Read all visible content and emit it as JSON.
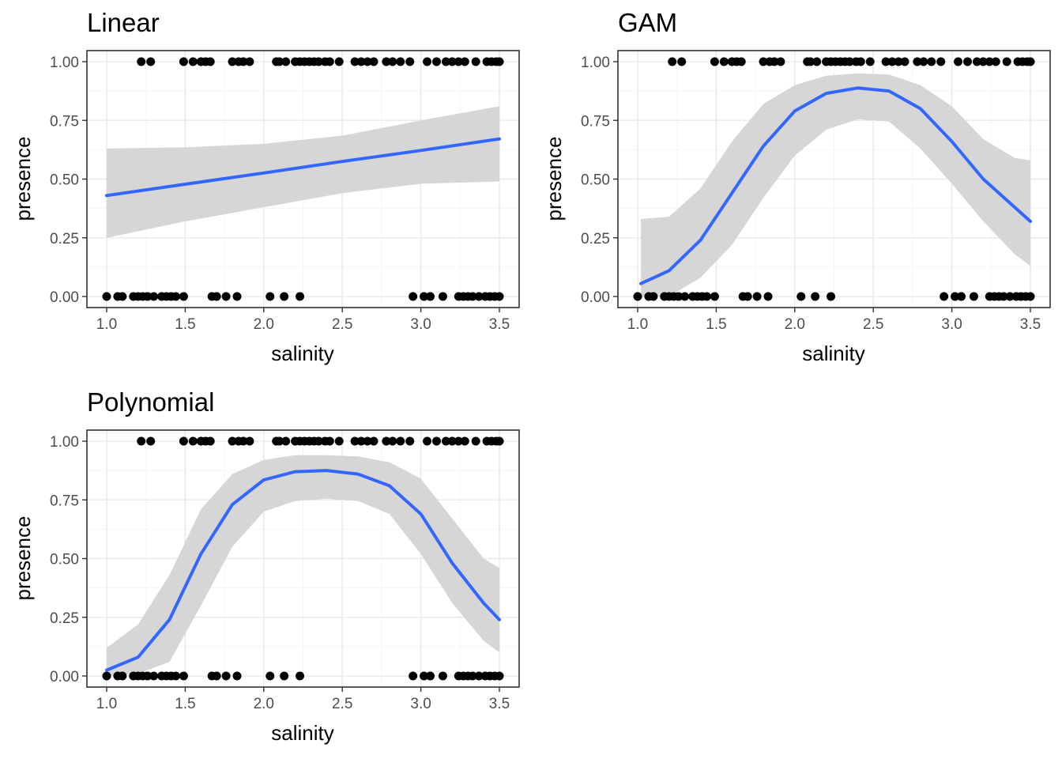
{
  "chart_data": [
    {
      "type": "scatter",
      "title": "Linear",
      "xlabel": "salinity",
      "ylabel": "presence",
      "xlim": [
        0.95,
        3.55
      ],
      "ylim": [
        -0.05,
        1.05
      ],
      "xticks": [
        "1.0",
        "1.5",
        "2.0",
        "2.5",
        "3.0",
        "3.5"
      ],
      "yticks": [
        "0.00",
        "0.25",
        "0.50",
        "0.75",
        "1.00"
      ],
      "grid": true,
      "points_y1": [
        1.22,
        1.28,
        1.49,
        1.55,
        1.6,
        1.63,
        1.66,
        1.8,
        1.84,
        1.87,
        1.91,
        2.08,
        2.1,
        2.14,
        2.2,
        2.23,
        2.26,
        2.29,
        2.32,
        2.35,
        2.39,
        2.42,
        2.48,
        2.58,
        2.62,
        2.66,
        2.7,
        2.78,
        2.82,
        2.87,
        2.93,
        3.04,
        3.1,
        3.16,
        3.2,
        3.24,
        3.28,
        3.35,
        3.42,
        3.45,
        3.48,
        3.5
      ],
      "points_y0": [
        1.0,
        1.07,
        1.1,
        1.17,
        1.2,
        1.23,
        1.26,
        1.3,
        1.35,
        1.38,
        1.41,
        1.44,
        1.49,
        1.67,
        1.7,
        1.76,
        1.83,
        2.04,
        2.13,
        2.23,
        2.95,
        3.02,
        3.06,
        3.14,
        3.24,
        3.27,
        3.3,
        3.33,
        3.37,
        3.41,
        3.44,
        3.47,
        3.5
      ],
      "fit": {
        "x": [
          1.0,
          1.5,
          2.0,
          2.5,
          3.0,
          3.5
        ],
        "y": [
          0.43,
          0.478,
          0.526,
          0.575,
          0.622,
          0.671
        ],
        "lower": [
          0.25,
          0.32,
          0.38,
          0.44,
          0.48,
          0.49
        ],
        "upper": [
          0.63,
          0.635,
          0.65,
          0.685,
          0.75,
          0.81
        ]
      }
    },
    {
      "type": "scatter",
      "title": "GAM",
      "xlabel": "salinity",
      "ylabel": "presence",
      "xlim": [
        0.95,
        3.55
      ],
      "ylim": [
        -0.05,
        1.05
      ],
      "xticks": [
        "1.0",
        "1.5",
        "2.0",
        "2.5",
        "3.0",
        "3.5"
      ],
      "yticks": [
        "0.00",
        "0.25",
        "0.50",
        "0.75",
        "1.00"
      ],
      "grid": true,
      "points_y1": [
        1.22,
        1.28,
        1.49,
        1.55,
        1.6,
        1.63,
        1.66,
        1.8,
        1.84,
        1.87,
        1.91,
        2.08,
        2.1,
        2.14,
        2.2,
        2.23,
        2.26,
        2.29,
        2.32,
        2.35,
        2.39,
        2.42,
        2.48,
        2.58,
        2.62,
        2.66,
        2.7,
        2.78,
        2.82,
        2.87,
        2.93,
        3.04,
        3.1,
        3.16,
        3.2,
        3.24,
        3.28,
        3.35,
        3.42,
        3.45,
        3.48,
        3.5
      ],
      "points_y0": [
        1.0,
        1.07,
        1.1,
        1.17,
        1.2,
        1.23,
        1.26,
        1.3,
        1.35,
        1.38,
        1.41,
        1.44,
        1.49,
        1.67,
        1.7,
        1.76,
        1.83,
        2.04,
        2.13,
        2.23,
        2.95,
        3.02,
        3.06,
        3.14,
        3.24,
        3.27,
        3.3,
        3.33,
        3.37,
        3.41,
        3.44,
        3.47,
        3.5
      ],
      "fit": {
        "x": [
          1.02,
          1.2,
          1.4,
          1.6,
          1.8,
          2.0,
          2.2,
          2.4,
          2.6,
          2.8,
          3.0,
          3.2,
          3.4,
          3.5
        ],
        "y": [
          0.055,
          0.11,
          0.24,
          0.44,
          0.64,
          0.79,
          0.865,
          0.888,
          0.875,
          0.8,
          0.66,
          0.5,
          0.38,
          0.32
        ],
        "lower": [
          0.0,
          0.0,
          0.08,
          0.22,
          0.42,
          0.6,
          0.71,
          0.755,
          0.745,
          0.63,
          0.48,
          0.32,
          0.18,
          0.13
        ],
        "upper": [
          0.33,
          0.34,
          0.46,
          0.66,
          0.82,
          0.9,
          0.94,
          0.95,
          0.945,
          0.9,
          0.81,
          0.67,
          0.59,
          0.58
        ]
      }
    },
    {
      "type": "scatter",
      "title": "Polynomial",
      "xlabel": "salinity",
      "ylabel": "presence",
      "xlim": [
        0.95,
        3.55
      ],
      "ylim": [
        -0.05,
        1.05
      ],
      "xticks": [
        "1.0",
        "1.5",
        "2.0",
        "2.5",
        "3.0",
        "3.5"
      ],
      "yticks": [
        "0.00",
        "0.25",
        "0.50",
        "0.75",
        "1.00"
      ],
      "grid": true,
      "points_y1": [
        1.22,
        1.28,
        1.49,
        1.55,
        1.6,
        1.63,
        1.66,
        1.8,
        1.84,
        1.87,
        1.91,
        2.08,
        2.1,
        2.14,
        2.2,
        2.23,
        2.26,
        2.29,
        2.32,
        2.35,
        2.39,
        2.42,
        2.48,
        2.58,
        2.62,
        2.66,
        2.7,
        2.78,
        2.82,
        2.87,
        2.93,
        3.04,
        3.1,
        3.16,
        3.2,
        3.24,
        3.28,
        3.35,
        3.42,
        3.45,
        3.48,
        3.5
      ],
      "points_y0": [
        1.0,
        1.07,
        1.1,
        1.17,
        1.2,
        1.23,
        1.26,
        1.3,
        1.35,
        1.38,
        1.41,
        1.44,
        1.49,
        1.67,
        1.7,
        1.76,
        1.83,
        2.04,
        2.13,
        2.23,
        2.95,
        3.02,
        3.06,
        3.14,
        3.24,
        3.27,
        3.3,
        3.33,
        3.37,
        3.41,
        3.44,
        3.47,
        3.5
      ],
      "fit": {
        "x": [
          1.0,
          1.2,
          1.4,
          1.6,
          1.8,
          2.0,
          2.2,
          2.4,
          2.6,
          2.8,
          3.0,
          3.2,
          3.4,
          3.5
        ],
        "y": [
          0.025,
          0.08,
          0.24,
          0.52,
          0.73,
          0.835,
          0.87,
          0.875,
          0.86,
          0.81,
          0.69,
          0.48,
          0.31,
          0.24
        ],
        "lower": [
          0.0,
          0.01,
          0.06,
          0.3,
          0.55,
          0.7,
          0.745,
          0.755,
          0.745,
          0.69,
          0.52,
          0.31,
          0.15,
          0.1
        ],
        "upper": [
          0.12,
          0.22,
          0.43,
          0.71,
          0.86,
          0.92,
          0.94,
          0.94,
          0.935,
          0.91,
          0.84,
          0.67,
          0.5,
          0.46
        ]
      }
    }
  ],
  "colors": {
    "line": "#3366ff",
    "ribbon": "#d6d6d6",
    "points": "#000000",
    "grid_major": "#ebebeb",
    "grid_minor": "#f5f5f5",
    "panel_border": "#333333"
  }
}
